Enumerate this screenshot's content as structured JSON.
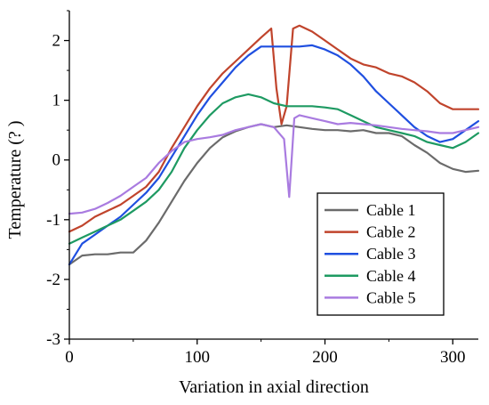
{
  "chart_data": {
    "type": "line",
    "title": "",
    "xlabel": "Variation in axial direction",
    "ylabel": "Temperature (?  )",
    "xlim": [
      0,
      320
    ],
    "ylim": [
      -3,
      2.5
    ],
    "xticks": [
      0,
      100,
      200,
      300
    ],
    "yticks": [
      -3,
      -2,
      -1,
      0,
      1,
      2
    ],
    "grid": false,
    "legend_position": "bottom-right",
    "series": [
      {
        "name": "Cable 1",
        "color": "#6b6b6b",
        "x": [
          0,
          10,
          20,
          30,
          40,
          50,
          60,
          70,
          80,
          90,
          100,
          110,
          120,
          130,
          140,
          150,
          160,
          170,
          180,
          190,
          200,
          210,
          220,
          230,
          240,
          250,
          260,
          270,
          280,
          290,
          300,
          310,
          320
        ],
        "y": [
          -1.75,
          -1.6,
          -1.58,
          -1.58,
          -1.55,
          -1.55,
          -1.35,
          -1.05,
          -0.7,
          -0.35,
          -0.05,
          0.2,
          0.38,
          0.48,
          0.55,
          0.6,
          0.55,
          0.58,
          0.55,
          0.52,
          0.5,
          0.5,
          0.48,
          0.5,
          0.45,
          0.45,
          0.4,
          0.25,
          0.12,
          -0.05,
          -0.15,
          -0.2,
          -0.18
        ]
      },
      {
        "name": "Cable 2",
        "color": "#c0442c",
        "x": [
          0,
          10,
          20,
          30,
          40,
          50,
          60,
          70,
          80,
          90,
          100,
          110,
          120,
          130,
          140,
          150,
          158,
          162,
          166,
          170,
          175,
          180,
          190,
          200,
          210,
          220,
          230,
          240,
          250,
          260,
          270,
          280,
          290,
          300,
          310,
          320
        ],
        "y": [
          -1.2,
          -1.1,
          -0.95,
          -0.85,
          -0.75,
          -0.6,
          -0.45,
          -0.2,
          0.2,
          0.55,
          0.9,
          1.2,
          1.45,
          1.65,
          1.85,
          2.05,
          2.2,
          1.2,
          0.6,
          0.9,
          2.2,
          2.25,
          2.15,
          2.0,
          1.85,
          1.7,
          1.6,
          1.55,
          1.45,
          1.4,
          1.3,
          1.15,
          0.95,
          0.85,
          0.85,
          0.85
        ]
      },
      {
        "name": "Cable 3",
        "color": "#1f4fe0",
        "x": [
          0,
          10,
          20,
          30,
          40,
          50,
          60,
          70,
          80,
          90,
          100,
          110,
          120,
          130,
          140,
          150,
          160,
          170,
          180,
          190,
          200,
          210,
          220,
          230,
          240,
          250,
          260,
          270,
          280,
          290,
          300,
          310,
          320
        ],
        "y": [
          -1.75,
          -1.4,
          -1.25,
          -1.1,
          -0.95,
          -0.75,
          -0.55,
          -0.3,
          0.05,
          0.4,
          0.75,
          1.05,
          1.3,
          1.55,
          1.75,
          1.9,
          1.9,
          1.9,
          1.9,
          1.92,
          1.85,
          1.75,
          1.6,
          1.4,
          1.15,
          0.95,
          0.75,
          0.55,
          0.4,
          0.3,
          0.35,
          0.5,
          0.65
        ]
      },
      {
        "name": "Cable 4",
        "color": "#1e9a62",
        "x": [
          0,
          10,
          20,
          30,
          40,
          50,
          60,
          70,
          80,
          90,
          100,
          110,
          120,
          130,
          140,
          150,
          160,
          170,
          180,
          190,
          200,
          210,
          220,
          230,
          240,
          250,
          260,
          270,
          280,
          290,
          300,
          310,
          320
        ],
        "y": [
          -1.4,
          -1.3,
          -1.2,
          -1.1,
          -1.0,
          -0.85,
          -0.7,
          -0.5,
          -0.2,
          0.2,
          0.5,
          0.75,
          0.95,
          1.05,
          1.1,
          1.05,
          0.95,
          0.9,
          0.9,
          0.9,
          0.88,
          0.85,
          0.75,
          0.65,
          0.55,
          0.5,
          0.45,
          0.4,
          0.3,
          0.25,
          0.2,
          0.3,
          0.45
        ]
      },
      {
        "name": "Cable 5",
        "color": "#a97be0",
        "x": [
          0,
          10,
          20,
          30,
          40,
          50,
          60,
          70,
          80,
          90,
          100,
          110,
          120,
          130,
          140,
          150,
          160,
          168,
          172,
          176,
          180,
          190,
          200,
          210,
          220,
          230,
          240,
          250,
          260,
          270,
          280,
          290,
          300,
          310,
          320
        ],
        "y": [
          -0.9,
          -0.88,
          -0.82,
          -0.72,
          -0.6,
          -0.45,
          -0.3,
          -0.05,
          0.15,
          0.3,
          0.35,
          0.38,
          0.42,
          0.5,
          0.55,
          0.6,
          0.55,
          0.35,
          -0.62,
          0.7,
          0.75,
          0.7,
          0.65,
          0.6,
          0.62,
          0.6,
          0.58,
          0.55,
          0.52,
          0.5,
          0.48,
          0.45,
          0.45,
          0.5,
          0.55
        ]
      }
    ]
  }
}
